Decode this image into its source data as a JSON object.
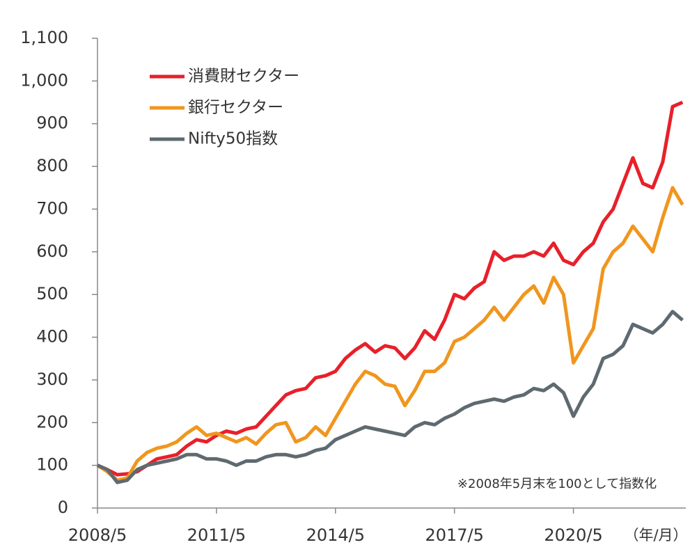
{
  "chart_data": {
    "type": "line",
    "x": [
      "2008/5",
      "2008/8",
      "2008/11",
      "2009/2",
      "2009/5",
      "2009/8",
      "2009/11",
      "2010/2",
      "2010/5",
      "2010/8",
      "2010/11",
      "2011/2",
      "2011/5",
      "2011/8",
      "2011/11",
      "2012/2",
      "2012/5",
      "2012/8",
      "2012/11",
      "2013/2",
      "2013/5",
      "2013/8",
      "2013/11",
      "2014/2",
      "2014/5",
      "2014/8",
      "2014/11",
      "2015/2",
      "2015/5",
      "2015/8",
      "2015/11",
      "2016/2",
      "2016/5",
      "2016/8",
      "2016/11",
      "2017/2",
      "2017/5",
      "2017/8",
      "2017/11",
      "2018/2",
      "2018/5",
      "2018/8",
      "2018/11",
      "2019/2",
      "2019/5",
      "2019/8",
      "2019/11",
      "2020/2",
      "2020/5",
      "2020/8",
      "2020/11",
      "2021/2",
      "2021/5",
      "2021/8",
      "2021/11",
      "2022/2",
      "2022/5",
      "2022/8",
      "2022/11",
      "2023/2"
    ],
    "series": [
      {
        "name": "消費財セクター",
        "color": "#e8202a",
        "values": [
          100,
          90,
          78,
          80,
          85,
          100,
          115,
          120,
          125,
          145,
          160,
          155,
          170,
          180,
          175,
          185,
          190,
          215,
          240,
          265,
          275,
          280,
          305,
          310,
          320,
          350,
          370,
          385,
          365,
          380,
          375,
          350,
          375,
          415,
          395,
          440,
          500,
          490,
          515,
          530,
          600,
          580,
          590,
          590,
          600,
          590,
          620,
          580,
          570,
          600,
          620,
          670,
          700,
          760,
          820,
          760,
          750,
          810,
          940,
          950
        ]
      },
      {
        "name": "銀行セクター",
        "color": "#f0961e",
        "values": [
          100,
          85,
          65,
          70,
          110,
          130,
          140,
          145,
          155,
          175,
          190,
          170,
          175,
          165,
          155,
          165,
          150,
          175,
          195,
          200,
          155,
          165,
          190,
          170,
          210,
          250,
          290,
          320,
          310,
          290,
          285,
          240,
          275,
          320,
          320,
          340,
          390,
          400,
          420,
          440,
          470,
          440,
          470,
          500,
          520,
          480,
          540,
          500,
          340,
          380,
          420,
          560,
          600,
          620,
          660,
          630,
          600,
          680,
          750,
          710
        ]
      },
      {
        "name": "Nifty50指数",
        "color": "#5f6a70",
        "values": [
          100,
          90,
          60,
          65,
          90,
          100,
          105,
          110,
          115,
          125,
          125,
          115,
          115,
          110,
          100,
          110,
          110,
          120,
          125,
          125,
          120,
          125,
          135,
          140,
          160,
          170,
          180,
          190,
          185,
          180,
          175,
          170,
          190,
          200,
          195,
          210,
          220,
          235,
          245,
          250,
          255,
          250,
          260,
          265,
          280,
          275,
          290,
          270,
          215,
          260,
          290,
          350,
          360,
          380,
          430,
          420,
          410,
          430,
          460,
          440
        ]
      }
    ],
    "xlim": [
      "2008/5",
      "2023/3"
    ],
    "xticks": [
      "2008/5",
      "2011/5",
      "2014/5",
      "2017/5",
      "2020/5"
    ],
    "ylim": [
      0,
      1100
    ],
    "yticks": [
      0,
      100,
      200,
      300,
      400,
      500,
      600,
      700,
      800,
      900,
      {
        "value": 1000,
        "label": "1,000"
      },
      {
        "value": 1100,
        "label": "1,100"
      }
    ],
    "x_axis_unit": "（年/月）",
    "annotation": "※2008年5月末を100として指数化",
    "legend": "upper left"
  }
}
